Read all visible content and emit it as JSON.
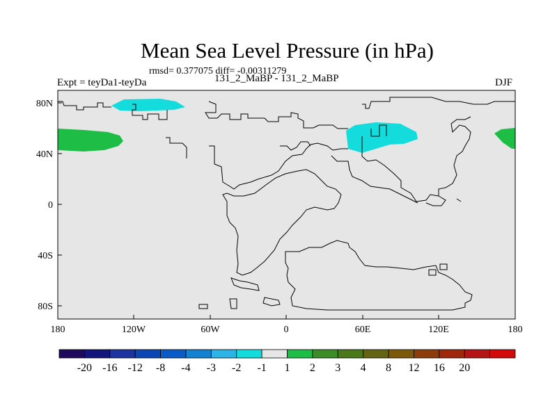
{
  "title": "Mean Sea Level Pressure (in hPa)",
  "stats_line": "rmsd= 0.377075 diff= -0.00311279",
  "experiment_label": "Expt = teyDa1-teyDa",
  "subtitle": "131_2_MaBP - 131_2_MaBP",
  "season": "DJF",
  "map": {
    "projection": "cylindrical equidistant",
    "lon_range": [
      -180,
      180
    ],
    "lat_range": [
      -90,
      90
    ],
    "background_color": "#e6e6e6",
    "coast_color": "#000000"
  },
  "axes": {
    "x_ticks": [
      {
        "value": -180,
        "label": "180"
      },
      {
        "value": -120,
        "label": "120W"
      },
      {
        "value": -60,
        "label": "60W"
      },
      {
        "value": 0,
        "label": "0"
      },
      {
        "value": 60,
        "label": "60E"
      },
      {
        "value": 120,
        "label": "120E"
      },
      {
        "value": 180,
        "label": "180"
      }
    ],
    "y_ticks": [
      {
        "value": 80,
        "label": "80N"
      },
      {
        "value": 40,
        "label": "40N"
      },
      {
        "value": 0,
        "label": "0"
      },
      {
        "value": -40,
        "label": "40S"
      },
      {
        "value": -80,
        "label": "80S"
      }
    ]
  },
  "colorbar": {
    "colors": [
      "#1e0a5c",
      "#14147d",
      "#1e32a0",
      "#0a46b4",
      "#0a5ac8",
      "#1482d2",
      "#2db4e6",
      "#14dcdc",
      "#e6e6e6",
      "#1ebe46",
      "#3c8c28",
      "#4b7819",
      "#646414",
      "#7d5a0a",
      "#8c3c0a",
      "#a0280a",
      "#b41414",
      "#d20a0a"
    ],
    "labels": [
      "-20",
      "-16",
      "-12",
      "-8",
      "-4",
      "-3",
      "-2",
      "-1",
      "1",
      "2",
      "3",
      "4",
      "8",
      "12",
      "16",
      "20"
    ]
  },
  "chart_data": {
    "type": "heatmap",
    "title": "Mean Sea Level Pressure (in hPa)",
    "units": "hPa",
    "anomaly_regions": [
      {
        "name": "north-atlantic-low",
        "approx_lon": [
          -140,
          -95
        ],
        "approx_lat": [
          73,
          80
        ],
        "value_bin": "-2 to -1",
        "color": "#14dcdc"
      },
      {
        "name": "siberia-low",
        "approx_lon": [
          47,
          100
        ],
        "approx_lat": [
          48,
          68
        ],
        "value_bin": "-2 to -1",
        "color": "#14dcdc"
      },
      {
        "name": "west-edge-high",
        "approx_lon": [
          -180,
          -144
        ],
        "approx_lat": [
          44,
          60
        ],
        "value_bin": "1 to 2",
        "color": "#1ebe46"
      },
      {
        "name": "east-edge-high",
        "approx_lon": [
          163,
          180
        ],
        "approx_lat": [
          45,
          60
        ],
        "value_bin": "1 to 2",
        "color": "#1ebe46"
      }
    ]
  }
}
